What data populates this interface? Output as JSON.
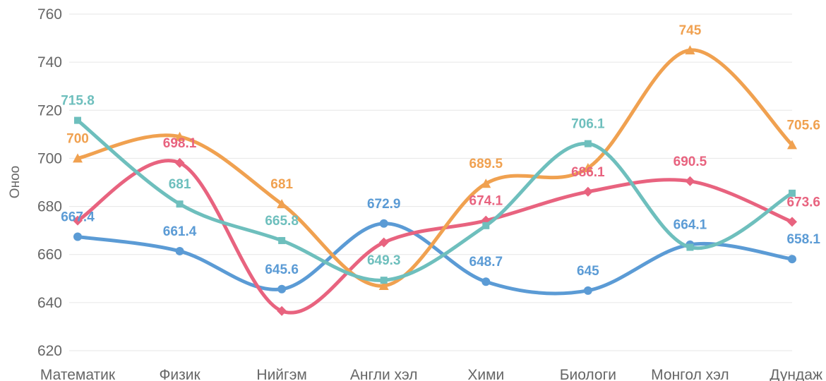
{
  "chart_data": {
    "type": "line",
    "title": "",
    "xlabel": "",
    "ylabel": "Оноо",
    "ylim": [
      620,
      760
    ],
    "yticks": [
      620,
      640,
      660,
      680,
      700,
      720,
      740,
      760
    ],
    "grid": true,
    "legend": "none",
    "categories": [
      "Математик",
      "Физик",
      "Нийгэм",
      "Англи хэл",
      "Хими",
      "Биологи",
      "Монгол хэл",
      "Дундаж"
    ],
    "series": [
      {
        "color": "#5b9bd5",
        "marker": "circle",
        "values": [
          667.4,
          661.4,
          645.6,
          672.9,
          648.7,
          645,
          664.1,
          658.1
        ],
        "labels": [
          "667.4",
          "661.4",
          "645.6",
          "672.9",
          "648.7",
          "645",
          "664.1",
          "658.1"
        ]
      },
      {
        "color": "#e8637f",
        "marker": "diamond",
        "values": [
          674.1,
          698.1,
          636.5,
          665,
          674.1,
          686.1,
          690.5,
          673.6
        ],
        "labels": [
          "",
          "698.1",
          "",
          "",
          "674.1",
          "686.1",
          "690.5",
          "673.6"
        ]
      },
      {
        "color": "#f0a150",
        "marker": "triangle",
        "values": [
          700,
          709,
          681,
          647,
          689.5,
          696,
          745,
          705.6
        ],
        "labels": [
          "700",
          "",
          "681",
          "",
          "689.5",
          "",
          "745",
          "705.6"
        ]
      },
      {
        "color": "#6ebfbd",
        "marker": "square",
        "values": [
          715.8,
          681,
          665.8,
          649.3,
          672,
          706.1,
          663,
          685.5
        ],
        "labels": [
          "715.8",
          "681",
          "665.8",
          "649.3",
          "",
          "706.1",
          "",
          ""
        ]
      }
    ]
  }
}
